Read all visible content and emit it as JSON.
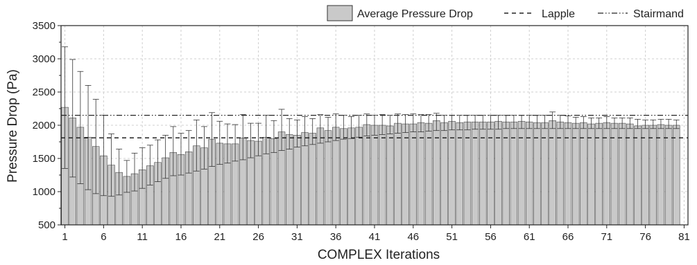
{
  "chart_data": {
    "type": "bar",
    "xlabel": "COMPLEX Iterations",
    "ylabel": "Pressure Drop (Pa)",
    "ylim": [
      500,
      3500
    ],
    "xlim": [
      0.5,
      81.5
    ],
    "yticks": [
      500,
      1000,
      1500,
      2000,
      2500,
      3000,
      3500
    ],
    "xticks": [
      1,
      6,
      11,
      16,
      21,
      26,
      31,
      36,
      41,
      46,
      51,
      56,
      61,
      66,
      71,
      76,
      81
    ],
    "grid": true,
    "legend_position": "top-right",
    "legend": {
      "bars_label": "Average Pressure Drop",
      "lapple_label": "Lapple",
      "stairmand_label": "Stairmand"
    },
    "reference_lines": [
      {
        "name": "Lapple",
        "value": 1810,
        "style": "dashed"
      },
      {
        "name": "Stairmand",
        "value": 2150,
        "style": "dash-dot-dot"
      }
    ],
    "x": [
      1,
      2,
      3,
      4,
      5,
      6,
      7,
      8,
      9,
      10,
      11,
      12,
      13,
      14,
      15,
      16,
      17,
      18,
      19,
      20,
      21,
      22,
      23,
      24,
      25,
      26,
      27,
      28,
      29,
      30,
      31,
      32,
      33,
      34,
      35,
      36,
      37,
      38,
      39,
      40,
      41,
      42,
      43,
      44,
      45,
      46,
      47,
      48,
      49,
      50,
      51,
      52,
      53,
      54,
      55,
      56,
      57,
      58,
      59,
      60,
      61,
      62,
      63,
      64,
      65,
      66,
      67,
      68,
      69,
      70,
      71,
      72,
      73,
      74,
      75,
      76,
      77,
      78,
      79,
      80
    ],
    "series": [
      {
        "name": "Average Pressure Drop",
        "values": [
          2270,
          2110,
          1970,
          1820,
          1680,
          1540,
          1400,
          1290,
          1230,
          1270,
          1330,
          1390,
          1440,
          1510,
          1590,
          1560,
          1600,
          1690,
          1660,
          1790,
          1730,
          1720,
          1720,
          1810,
          1770,
          1760,
          1820,
          1800,
          1900,
          1860,
          1850,
          1890,
          1880,
          1960,
          1920,
          1970,
          1950,
          1960,
          1970,
          2010,
          2000,
          2000,
          1990,
          2030,
          2020,
          2020,
          2040,
          2030,
          2070,
          2040,
          2060,
          2040,
          2050,
          2050,
          2050,
          2050,
          2060,
          2050,
          2050,
          2060,
          2050,
          2040,
          2040,
          2070,
          2050,
          2040,
          2030,
          2040,
          2020,
          2030,
          2040,
          2030,
          2030,
          2020,
          1990,
          2000,
          2000,
          2010,
          2000,
          2000
        ],
        "error_upper": [
          3180,
          2990,
          2810,
          2600,
          2390,
          2150,
          1870,
          1640,
          1470,
          1580,
          1660,
          1700,
          1780,
          1850,
          1980,
          1880,
          1920,
          2080,
          1980,
          2190,
          2060,
          2020,
          2010,
          2160,
          2030,
          2030,
          2150,
          2070,
          2240,
          2100,
          2080,
          2130,
          2100,
          2160,
          2120,
          2170,
          2150,
          2130,
          2150,
          2170,
          2150,
          2160,
          2150,
          2170,
          2160,
          2170,
          2160,
          2160,
          2180,
          2150,
          2150,
          2150,
          2150,
          2150,
          2150,
          2150,
          2150,
          2150,
          2150,
          2150,
          2150,
          2150,
          2150,
          2200,
          2150,
          2140,
          2120,
          2130,
          2110,
          2110,
          2130,
          2110,
          2110,
          2110,
          2090,
          2080,
          2080,
          2090,
          2090,
          2080
        ],
        "error_lower": [
          1350,
          1220,
          1120,
          1030,
          970,
          940,
          930,
          950,
          990,
          1010,
          1050,
          1100,
          1150,
          1200,
          1240,
          1250,
          1280,
          1310,
          1340,
          1380,
          1410,
          1430,
          1460,
          1480,
          1510,
          1540,
          1570,
          1590,
          1620,
          1640,
          1670,
          1690,
          1710,
          1730,
          1750,
          1770,
          1790,
          1800,
          1820,
          1840,
          1850,
          1860,
          1870,
          1880,
          1890,
          1900,
          1900,
          1910,
          1920,
          1920,
          1930,
          1930,
          1930,
          1940,
          1940,
          1940,
          1940,
          1950,
          1950,
          1950,
          1950,
          1950,
          1950,
          1950,
          1950,
          1950,
          1950,
          1950,
          1950,
          1950,
          1950,
          1950,
          1950,
          1950,
          1950,
          1950,
          1950,
          1950,
          1950,
          1950
        ]
      }
    ]
  }
}
